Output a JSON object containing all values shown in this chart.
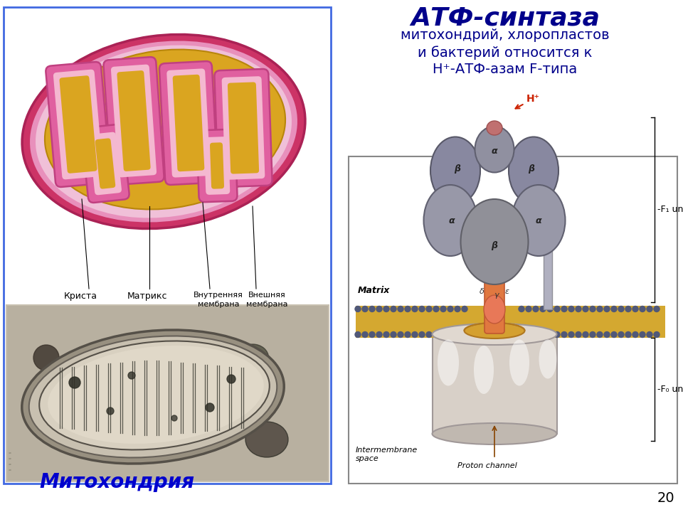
{
  "title": "АТФ-синтаза",
  "subtitle_lines": [
    "митохондрий, хлоропластов",
    "и бактерий относится к",
    "Н⁺-АТФ-азам F-типа"
  ],
  "bottom_label": "Митохондрия",
  "slide_number": "20",
  "bg_color": "#ffffff",
  "title_color": "#00008B",
  "subtitle_color": "#00008B",
  "bottom_label_color": "#0000CD",
  "left_border_color": "#4169E1",
  "mito_outer": "#CC3366",
  "mito_outer_edge": "#AA2255",
  "mito_pink_inner": "#E060A0",
  "mito_pink_inner_light": "#F0A0C0",
  "mito_matrix": "#DAA520",
  "mito_matrix_edge": "#B8860B",
  "crista_pink": "#E060A0",
  "crista_pink_edge": "#C04080",
  "crista_inner_pink": "#F0A8C0",
  "f1_color": "#9090A0",
  "f1_dark": "#707080",
  "f0_color": "#D0C8C0",
  "f0_edge": "#A09898",
  "mem_gold": "#D4A830",
  "mem_dark_blue": "#505878",
  "stalk_orange": "#E07840",
  "stalk_orange_edge": "#C05830",
  "knob_salmon": "#E08070",
  "label_color": "#000000",
  "right_border_color": "#888888"
}
